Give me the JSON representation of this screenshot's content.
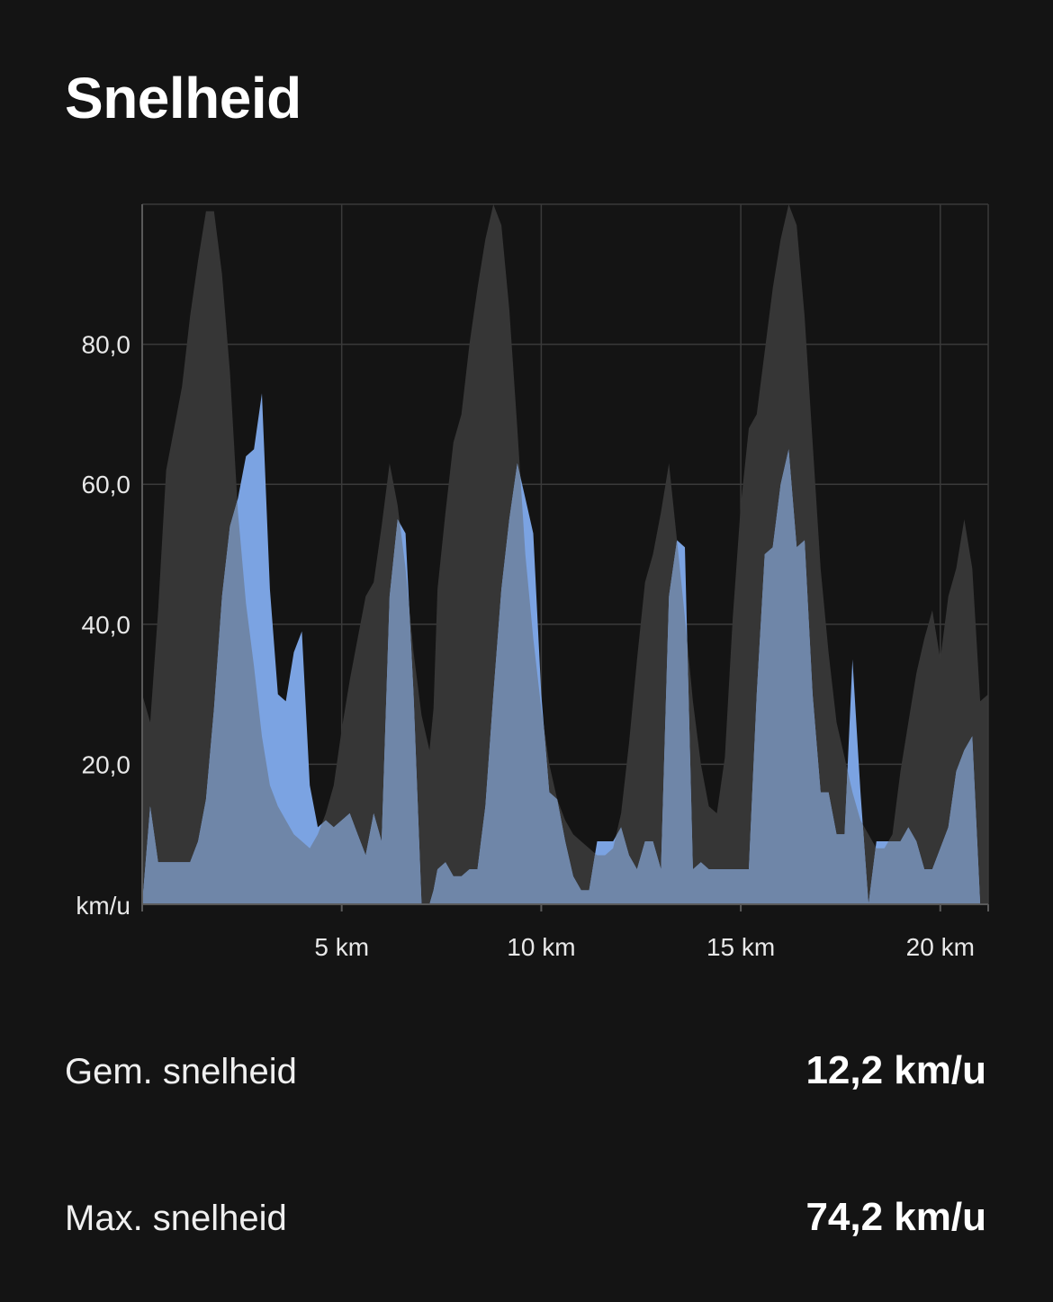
{
  "header": {
    "title": "Snelheid"
  },
  "colors": {
    "background": "#141414",
    "grid": "#3a3a3a",
    "elevation": "#363636",
    "speed": "#7ba3e2",
    "speed_overlap": "#6f86a8"
  },
  "chart_data": {
    "type": "area",
    "ylabel": "km/u",
    "y_ticks": [
      "20,0",
      "40,0",
      "60,0",
      "80,0"
    ],
    "y_tick_values": [
      20,
      40,
      60,
      80
    ],
    "x_ticks": [
      "5 km",
      "10 km",
      "15 km",
      "20 km"
    ],
    "x_tick_values": [
      5,
      10,
      15,
      20
    ],
    "xlim": [
      0,
      21.2
    ],
    "ylim": [
      0,
      100
    ],
    "series": [
      {
        "key": "elevation",
        "x": [
          0.0,
          0.2,
          0.4,
          0.6,
          0.8,
          1.0,
          1.2,
          1.4,
          1.6,
          1.8,
          2.0,
          2.2,
          2.4,
          2.6,
          2.8,
          3.0,
          3.2,
          3.4,
          3.6,
          3.8,
          4.0,
          4.2,
          4.4,
          4.6,
          4.8,
          5.0,
          5.2,
          5.4,
          5.6,
          5.8,
          6.0,
          6.2,
          6.4,
          6.6,
          6.8,
          7.0,
          7.2,
          7.3,
          7.4,
          7.6,
          7.8,
          8.0,
          8.2,
          8.4,
          8.6,
          8.8,
          9.0,
          9.2,
          9.4,
          9.6,
          9.8,
          10.0,
          10.2,
          10.4,
          10.6,
          10.8,
          11.0,
          11.2,
          11.4,
          11.6,
          11.8,
          12.0,
          12.2,
          12.4,
          12.6,
          12.8,
          13.0,
          13.2,
          13.4,
          13.6,
          13.8,
          14.0,
          14.2,
          14.4,
          14.6,
          14.8,
          15.0,
          15.2,
          15.4,
          15.6,
          15.8,
          16.0,
          16.2,
          16.4,
          16.6,
          16.8,
          17.0,
          17.2,
          17.4,
          17.6,
          17.8,
          18.0,
          18.2,
          18.4,
          18.6,
          18.8,
          19.0,
          19.2,
          19.4,
          19.6,
          19.8,
          20.0,
          20.2,
          20.4,
          20.6,
          20.8,
          21.0,
          21.2
        ],
        "values": [
          30,
          26,
          42,
          62,
          68,
          74,
          84,
          92,
          99,
          99,
          90,
          76,
          56,
          43,
          34,
          24,
          17,
          14,
          12,
          10,
          9,
          8,
          10,
          13,
          17,
          25,
          32,
          38,
          44,
          46,
          54,
          63,
          57,
          48,
          36,
          27,
          22,
          28,
          45,
          56,
          66,
          70,
          80,
          88,
          95,
          100,
          97,
          85,
          68,
          50,
          38,
          28,
          20,
          15,
          12,
          10,
          9,
          8,
          7,
          7,
          8,
          13,
          23,
          35,
          46,
          50,
          56,
          63,
          52,
          41,
          29,
          20,
          14,
          13,
          21,
          41,
          57,
          68,
          70,
          79,
          88,
          95,
          100,
          97,
          84,
          66,
          48,
          36,
          26,
          21,
          16,
          12,
          10,
          8,
          8,
          10,
          19,
          26,
          33,
          38,
          42,
          35,
          44,
          48,
          55,
          48,
          29,
          30
        ]
      },
      {
        "key": "speed",
        "x": [
          0.0,
          0.2,
          0.4,
          0.6,
          0.8,
          1.0,
          1.2,
          1.4,
          1.6,
          1.8,
          2.0,
          2.2,
          2.4,
          2.6,
          2.8,
          3.0,
          3.2,
          3.4,
          3.6,
          3.8,
          4.0,
          4.2,
          4.4,
          4.6,
          4.8,
          5.0,
          5.2,
          5.4,
          5.6,
          5.8,
          6.0,
          6.2,
          6.4,
          6.6,
          6.8,
          7.0,
          7.2,
          7.3,
          7.4,
          7.6,
          7.8,
          8.0,
          8.2,
          8.4,
          8.6,
          8.8,
          9.0,
          9.2,
          9.4,
          9.6,
          9.8,
          10.0,
          10.2,
          10.4,
          10.6,
          10.8,
          11.0,
          11.2,
          11.4,
          11.6,
          11.8,
          12.0,
          12.2,
          12.4,
          12.6,
          12.8,
          13.0,
          13.2,
          13.4,
          13.6,
          13.8,
          14.0,
          14.2,
          14.4,
          14.6,
          14.8,
          15.0,
          15.2,
          15.4,
          15.6,
          15.8,
          16.0,
          16.2,
          16.4,
          16.6,
          16.8,
          17.0,
          17.2,
          17.4,
          17.6,
          17.8,
          18.0,
          18.2,
          18.4,
          18.6,
          18.8,
          19.0,
          19.2,
          19.4,
          19.6,
          19.8,
          20.0,
          20.2,
          20.4,
          20.6,
          20.8,
          21.0,
          21.2
        ],
        "values": [
          0,
          14,
          6,
          6,
          6,
          6,
          6,
          9,
          15,
          28,
          44,
          54,
          58,
          64,
          65,
          73,
          45,
          30,
          29,
          36,
          39,
          17,
          11,
          12,
          11,
          12,
          13,
          10,
          7,
          13,
          9,
          44,
          55,
          53,
          30,
          0,
          0,
          2,
          5,
          6,
          4,
          4,
          5,
          5,
          14,
          30,
          45,
          55,
          63,
          58,
          53,
          30,
          16,
          15,
          9,
          4,
          2,
          2,
          9,
          9,
          9,
          11,
          7,
          5,
          9,
          9,
          5,
          44,
          52,
          51,
          5,
          6,
          5,
          5,
          5,
          5,
          5,
          5,
          30,
          50,
          51,
          60,
          65,
          51,
          52,
          30,
          16,
          16,
          10,
          10,
          35,
          16,
          0,
          9,
          9,
          9,
          9,
          11,
          9,
          5,
          5,
          8,
          11,
          19,
          22,
          24,
          0,
          0
        ]
      }
    ]
  },
  "stats": [
    {
      "label": "Gem. snelheid",
      "value": "12,2 km/u"
    },
    {
      "label": "Max. snelheid",
      "value": "74,2 km/u"
    }
  ]
}
